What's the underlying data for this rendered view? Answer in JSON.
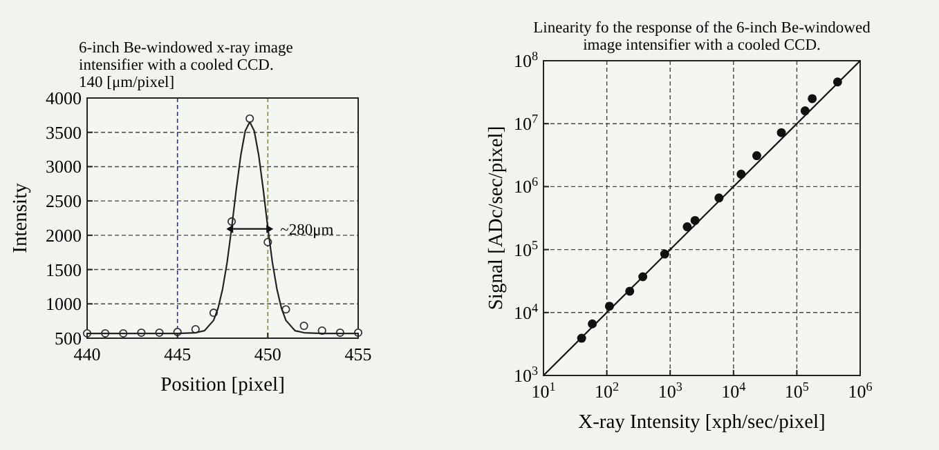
{
  "chart_data": [
    {
      "type": "scatter",
      "title": "6-inch Be-windowed x-ray image intensifier with a cooled CCD.",
      "subtitle": "140 [μm/pixel]",
      "xlabel": "Position [pixel]",
      "ylabel": "Intensity",
      "xlim": [
        440,
        455
      ],
      "ylim": [
        500,
        4000
      ],
      "xticks": [
        440,
        445,
        450,
        455
      ],
      "yticks": [
        500,
        1000,
        1500,
        2000,
        2500,
        3000,
        3500,
        4000
      ],
      "grid": "y",
      "ref_lines": [
        {
          "axis": "x",
          "value": 445,
          "color": "#303070",
          "line_style": "dashed"
        },
        {
          "axis": "x",
          "value": 450,
          "color": "#8a8a20",
          "line_style": "dashed"
        }
      ],
      "annotations": [
        "~280μm"
      ],
      "series": [
        {
          "marker": "circle",
          "color": "#333333",
          "x": [
            440,
            441,
            442,
            443,
            444,
            445,
            446,
            447,
            448,
            449,
            450,
            451,
            452,
            453,
            454,
            455
          ],
          "values": [
            570,
            570,
            570,
            580,
            580,
            590,
            630,
            870,
            2200,
            3700,
            1900,
            920,
            680,
            610,
            580,
            580
          ]
        },
        {
          "type": "line",
          "color": "#222222",
          "x": [
            440,
            444,
            445,
            446,
            446.5,
            447,
            447.25,
            447.5,
            447.75,
            448,
            448.25,
            448.5,
            448.75,
            449,
            449.25,
            449.5,
            449.75,
            450,
            450.25,
            450.5,
            450.75,
            451,
            451.5,
            452,
            453,
            455
          ],
          "values": [
            570,
            570,
            570,
            580,
            610,
            760,
            940,
            1220,
            1610,
            2110,
            2660,
            3160,
            3520,
            3650,
            3520,
            3160,
            2660,
            2110,
            1610,
            1220,
            940,
            760,
            610,
            580,
            570,
            570
          ]
        }
      ]
    },
    {
      "type": "scatter",
      "title": "Linearity fo the response of the 6-inch Be-windowed image intensifier with a cooled CCD.",
      "xlabel": "X-ray Intensity [xph/sec/pixel]",
      "ylabel": "Signal [ADc/sec/pixel]",
      "log": "xy",
      "xlim": [
        10,
        1000000
      ],
      "ylim": [
        1000,
        100000000
      ],
      "xticks": [
        {
          "value": 10,
          "label": "10$^{1}$"
        },
        {
          "value": 100,
          "label": "10$^{2}$"
        },
        {
          "value": 1000,
          "label": "10$^{3}$"
        },
        {
          "value": 10000,
          "label": "10$^{4}$"
        },
        {
          "value": 100000,
          "label": "10$^{5}$"
        },
        {
          "value": 1000000,
          "label": "10$^{6}$"
        }
      ],
      "yticks": [
        {
          "value": 1000,
          "label": "10$^{3}$"
        },
        {
          "value": 10000,
          "label": "10$^{4}$"
        },
        {
          "value": 100000,
          "label": "10$^{5}$"
        },
        {
          "value": 1000000,
          "label": "10$^{6}$"
        },
        {
          "value": 10000000,
          "label": "10$^{7}$"
        },
        {
          "value": 100000000,
          "label": "10$^{8}$"
        }
      ],
      "grid": true,
      "series": [
        {
          "marker": "circle",
          "color": "#111111",
          "x": [
            40,
            59,
            110,
            230,
            370,
            820,
            1860,
            2470,
            5900,
            13200,
            23300,
            57000,
            135000,
            175000,
            440000
          ],
          "values": [
            3900,
            6600,
            12600,
            21800,
            37000,
            85000,
            230000,
            290000,
            660000,
            1580000,
            3100000,
            7200000,
            16000000,
            25000000,
            46000000
          ]
        },
        {
          "type": "line",
          "color": "#111111",
          "x": [
            10,
            1000000
          ],
          "values": [
            1000,
            100000000
          ]
        }
      ]
    }
  ]
}
